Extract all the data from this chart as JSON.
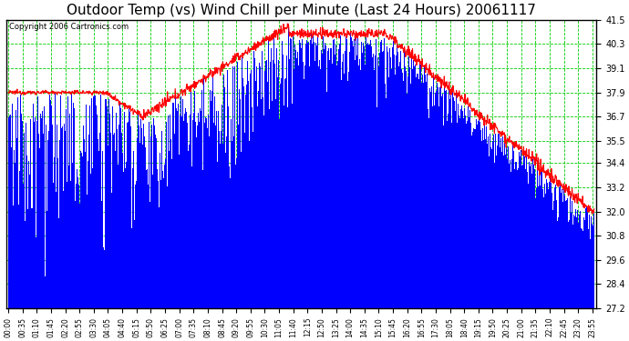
{
  "title": "Outdoor Temp (vs) Wind Chill per Minute (Last 24 Hours) 20061117",
  "copyright": "Copyright 2006 Cartronics.com",
  "yticks": [
    27.2,
    28.4,
    29.6,
    30.8,
    32.0,
    33.2,
    34.4,
    35.5,
    36.7,
    37.9,
    39.1,
    40.3,
    41.5
  ],
  "ymin": 27.2,
  "ymax": 41.5,
  "bg_color": "#ffffff",
  "fig_bg": "#ffffff",
  "bar_color": "#0000ff",
  "line_color": "#ff0000",
  "grid_color": "#00cc00",
  "title_fontsize": 11,
  "copyright_fontsize": 6,
  "outdoor_temp_profile": {
    "t0_val": 37.9,
    "t1_hour": 4,
    "t1_val": 37.9,
    "t2_hour": 5.5,
    "t2_val": 36.7,
    "t3_hour": 11.5,
    "t3_val": 41.2,
    "t4_hour": 15.5,
    "t4_val": 40.8,
    "t5_hour": 23.917,
    "t5_val": 32.0
  }
}
